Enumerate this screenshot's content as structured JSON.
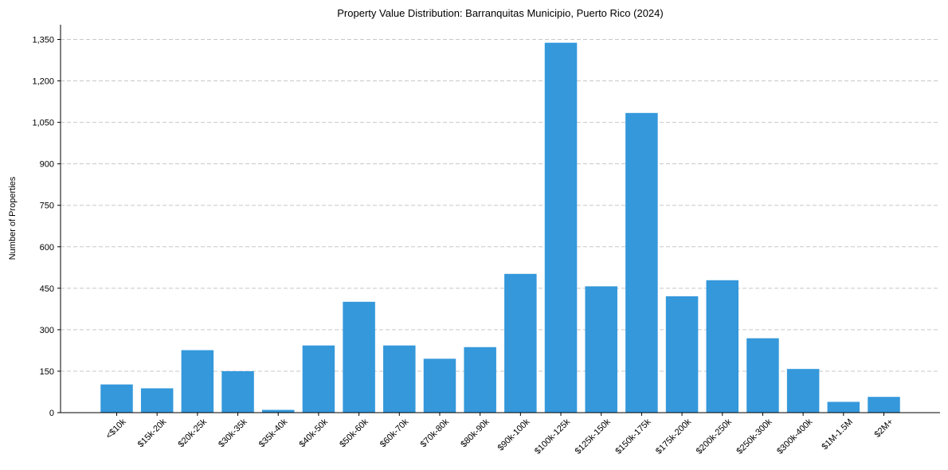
{
  "chart_data": {
    "type": "bar",
    "title": "Property Value Distribution: Barranquitas Municipio, Puerto Rico (2024)",
    "xlabel": "",
    "ylabel": "Number of Properties",
    "categories": [
      "<$10k",
      "$15k-20k",
      "$20k-25k",
      "$30k-35k",
      "$35k-40k",
      "$40k-50k",
      "$50k-60k",
      "$60k-70k",
      "$70k-80k",
      "$80k-90k",
      "$90k-100k",
      "$100k-125k",
      "$125k-150k",
      "$150k-175k",
      "$175k-200k",
      "$200k-250k",
      "$250k-300k",
      "$300k-400k",
      "$1M-1.5M",
      "$2M+"
    ],
    "values": [
      102,
      88,
      226,
      150,
      10,
      243,
      401,
      243,
      195,
      237,
      502,
      1338,
      457,
      1084,
      421,
      479,
      269,
      158,
      39,
      57
    ],
    "ylim": [
      0,
      1400
    ],
    "yticks": [
      0,
      150,
      300,
      450,
      600,
      750,
      900,
      1050,
      1200,
      1350
    ],
    "ytick_labels": [
      "0",
      "150",
      "300",
      "450",
      "600",
      "750",
      "900",
      "1,050",
      "1,200",
      "1,350"
    ],
    "grid": "y-dashed",
    "bar_color": "#3498db"
  }
}
